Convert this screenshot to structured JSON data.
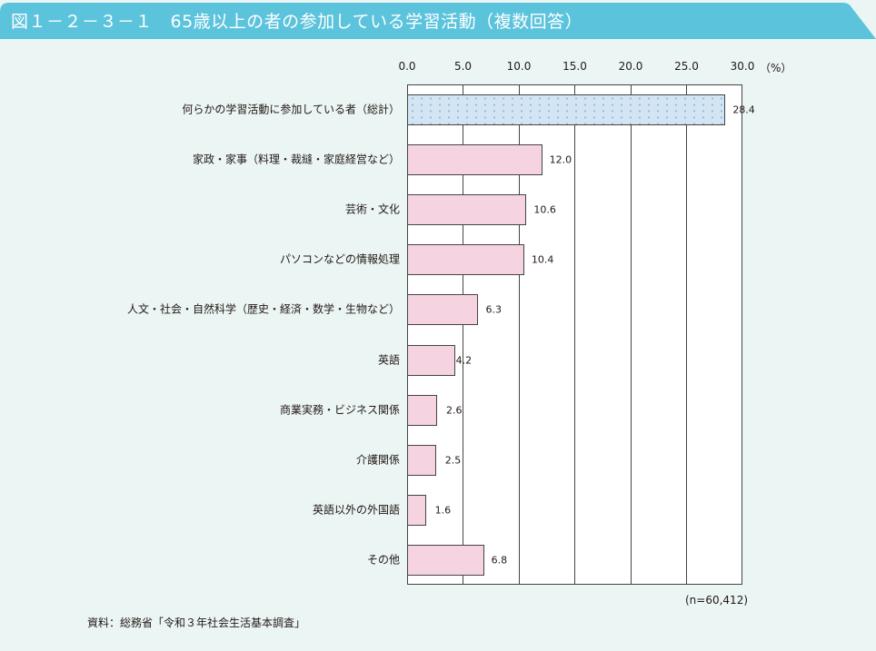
{
  "header": {
    "title": "図１－２－３－１　65歳以上の者の参加している学習活動（複数回答）",
    "color": "#5bc3dc"
  },
  "axis": {
    "ticks": [
      "0.0",
      "5.0",
      "10.0",
      "15.0",
      "20.0",
      "25.0",
      "30.0"
    ],
    "unit": "（%）"
  },
  "rows": [
    {
      "label": "何らかの学習活動に参加している者（総計）",
      "value": "28.4"
    },
    {
      "label": "家政・家事（料理・裁縫・家庭経営など）",
      "value": "12.0"
    },
    {
      "label": "芸術・文化",
      "value": "10.6"
    },
    {
      "label": "パソコンなどの情報処理",
      "value": "10.4"
    },
    {
      "label": "人文・社会・自然科学（歴史・経済・数学・生物など）",
      "value": "6.3"
    },
    {
      "label": "英語",
      "value": "4.2"
    },
    {
      "label": "商業実務・ビジネス関係",
      "value": "2.6"
    },
    {
      "label": "介護関係",
      "value": "2.5"
    },
    {
      "label": "英語以外の外国語",
      "value": "1.6"
    },
    {
      "label": "その他",
      "value": "6.8"
    }
  ],
  "footer": {
    "sample_size": "(n=60,412)",
    "source": "資料：総務省「令和３年社会生活基本調査」"
  },
  "chart_data": {
    "type": "bar",
    "orientation": "horizontal",
    "title": "図１－２－３－１　65歳以上の者の参加している学習活動（複数回答）",
    "categories": [
      "何らかの学習活動に参加している者（総計）",
      "家政・家事（料理・裁縫・家庭経営など）",
      "芸術・文化",
      "パソコンなどの情報処理",
      "人文・社会・自然科学（歴史・経済・数学・生物など）",
      "英語",
      "商業実務・ビジネス関係",
      "介護関係",
      "英語以外の外国語",
      "その他"
    ],
    "values": [
      28.4,
      12.0,
      10.6,
      10.4,
      6.3,
      4.2,
      2.6,
      2.5,
      1.6,
      6.8
    ],
    "xlabel": "（%）",
    "ylabel": "",
    "xlim": [
      0,
      30
    ],
    "xticks": [
      0.0,
      5.0,
      10.0,
      15.0,
      20.0,
      25.0,
      30.0
    ],
    "grid": true,
    "axis_position": "top",
    "colors": {
      "total": "#d3e4f3",
      "items": "#f6d3e0",
      "border": "#444444"
    },
    "annotations": [
      "(n=60,412)"
    ],
    "source": "資料：総務省「令和３年社会生活基本調査」"
  }
}
